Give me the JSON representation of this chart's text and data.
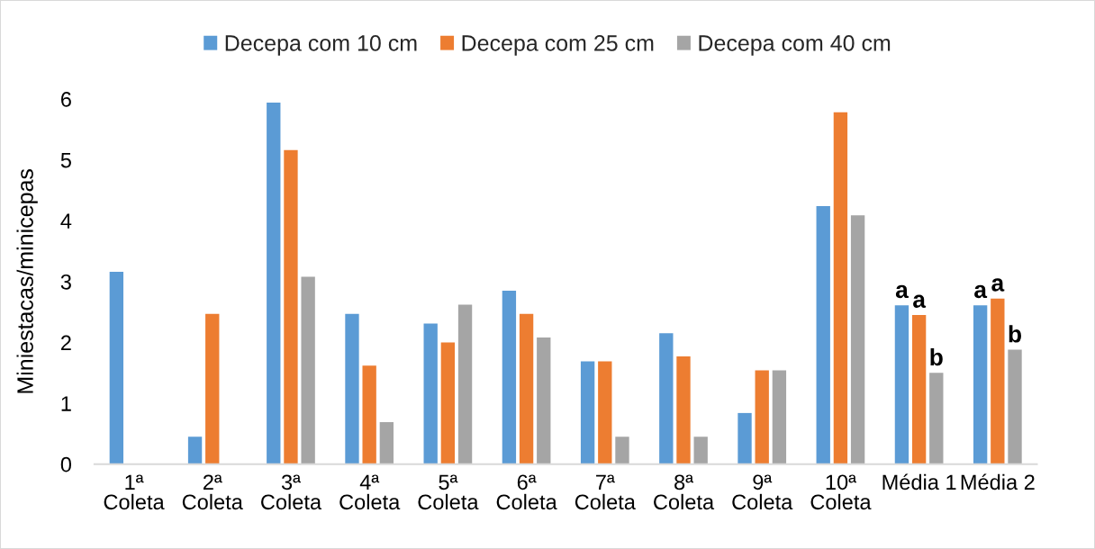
{
  "chart_data": {
    "type": "bar",
    "ylabel": "Miniestacas/minicepas",
    "categories": [
      "1ª\nColeta",
      "2ª\nColeta",
      "3ª\nColeta",
      "4ª\nColeta",
      "5ª\nColeta",
      "6ª\nColeta",
      "7ª\nColeta",
      "8ª\nColeta",
      "9ª\nColeta",
      "10ª\nColeta",
      "Média 1",
      "Média 2"
    ],
    "series": [
      {
        "name": "Decepa com 10 cm",
        "color": "#5b9bd5",
        "values": [
          3.16,
          0.45,
          5.94,
          2.47,
          2.31,
          2.85,
          1.69,
          2.15,
          0.84,
          4.24,
          2.61,
          2.61
        ],
        "value_labels": [
          null,
          null,
          null,
          null,
          null,
          null,
          null,
          null,
          null,
          null,
          "a",
          "a"
        ]
      },
      {
        "name": "Decepa com 25 cm",
        "color": "#ed7d31",
        "values": [
          0,
          2.47,
          5.16,
          1.62,
          2.0,
          2.47,
          1.69,
          1.77,
          1.54,
          5.78,
          2.45,
          2.72
        ],
        "value_labels": [
          null,
          null,
          null,
          null,
          null,
          null,
          null,
          null,
          null,
          null,
          "a",
          "a"
        ]
      },
      {
        "name": "Decepa com 40 cm",
        "color": "#a5a5a5",
        "values": [
          0,
          0,
          3.08,
          0.69,
          2.62,
          2.08,
          0.45,
          0.45,
          1.54,
          4.09,
          1.5,
          1.88
        ],
        "value_labels": [
          null,
          null,
          null,
          null,
          null,
          null,
          null,
          null,
          null,
          null,
          "b",
          "b"
        ]
      }
    ],
    "ylim": [
      0,
      6
    ],
    "yticks": [
      0,
      1,
      2,
      3,
      4,
      5,
      6
    ],
    "legend": "top"
  }
}
